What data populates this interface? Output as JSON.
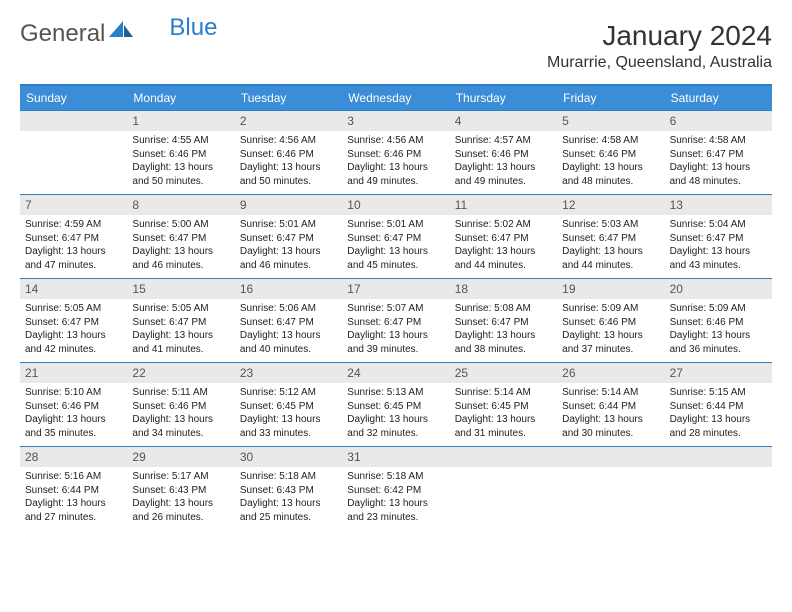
{
  "brand": {
    "part1": "General",
    "part2": "Blue"
  },
  "header": {
    "month_title": "January 2024",
    "location": "Murarrie, Queensland, Australia"
  },
  "colors": {
    "header_bg": "#3a8dd6",
    "border": "#2a7fc9",
    "date_bg": "#e9e9e9",
    "text": "#222222",
    "page_bg": "#ffffff"
  },
  "day_headers": [
    "Sunday",
    "Monday",
    "Tuesday",
    "Wednesday",
    "Thursday",
    "Friday",
    "Saturday"
  ],
  "blank_cells_before": 1,
  "blank_cells_after": 3,
  "days": [
    {
      "n": "1",
      "sunrise": "Sunrise: 4:55 AM",
      "sunset": "Sunset: 6:46 PM",
      "dl1": "Daylight: 13 hours",
      "dl2": "and 50 minutes."
    },
    {
      "n": "2",
      "sunrise": "Sunrise: 4:56 AM",
      "sunset": "Sunset: 6:46 PM",
      "dl1": "Daylight: 13 hours",
      "dl2": "and 50 minutes."
    },
    {
      "n": "3",
      "sunrise": "Sunrise: 4:56 AM",
      "sunset": "Sunset: 6:46 PM",
      "dl1": "Daylight: 13 hours",
      "dl2": "and 49 minutes."
    },
    {
      "n": "4",
      "sunrise": "Sunrise: 4:57 AM",
      "sunset": "Sunset: 6:46 PM",
      "dl1": "Daylight: 13 hours",
      "dl2": "and 49 minutes."
    },
    {
      "n": "5",
      "sunrise": "Sunrise: 4:58 AM",
      "sunset": "Sunset: 6:46 PM",
      "dl1": "Daylight: 13 hours",
      "dl2": "and 48 minutes."
    },
    {
      "n": "6",
      "sunrise": "Sunrise: 4:58 AM",
      "sunset": "Sunset: 6:47 PM",
      "dl1": "Daylight: 13 hours",
      "dl2": "and 48 minutes."
    },
    {
      "n": "7",
      "sunrise": "Sunrise: 4:59 AM",
      "sunset": "Sunset: 6:47 PM",
      "dl1": "Daylight: 13 hours",
      "dl2": "and 47 minutes."
    },
    {
      "n": "8",
      "sunrise": "Sunrise: 5:00 AM",
      "sunset": "Sunset: 6:47 PM",
      "dl1": "Daylight: 13 hours",
      "dl2": "and 46 minutes."
    },
    {
      "n": "9",
      "sunrise": "Sunrise: 5:01 AM",
      "sunset": "Sunset: 6:47 PM",
      "dl1": "Daylight: 13 hours",
      "dl2": "and 46 minutes."
    },
    {
      "n": "10",
      "sunrise": "Sunrise: 5:01 AM",
      "sunset": "Sunset: 6:47 PM",
      "dl1": "Daylight: 13 hours",
      "dl2": "and 45 minutes."
    },
    {
      "n": "11",
      "sunrise": "Sunrise: 5:02 AM",
      "sunset": "Sunset: 6:47 PM",
      "dl1": "Daylight: 13 hours",
      "dl2": "and 44 minutes."
    },
    {
      "n": "12",
      "sunrise": "Sunrise: 5:03 AM",
      "sunset": "Sunset: 6:47 PM",
      "dl1": "Daylight: 13 hours",
      "dl2": "and 44 minutes."
    },
    {
      "n": "13",
      "sunrise": "Sunrise: 5:04 AM",
      "sunset": "Sunset: 6:47 PM",
      "dl1": "Daylight: 13 hours",
      "dl2": "and 43 minutes."
    },
    {
      "n": "14",
      "sunrise": "Sunrise: 5:05 AM",
      "sunset": "Sunset: 6:47 PM",
      "dl1": "Daylight: 13 hours",
      "dl2": "and 42 minutes."
    },
    {
      "n": "15",
      "sunrise": "Sunrise: 5:05 AM",
      "sunset": "Sunset: 6:47 PM",
      "dl1": "Daylight: 13 hours",
      "dl2": "and 41 minutes."
    },
    {
      "n": "16",
      "sunrise": "Sunrise: 5:06 AM",
      "sunset": "Sunset: 6:47 PM",
      "dl1": "Daylight: 13 hours",
      "dl2": "and 40 minutes."
    },
    {
      "n": "17",
      "sunrise": "Sunrise: 5:07 AM",
      "sunset": "Sunset: 6:47 PM",
      "dl1": "Daylight: 13 hours",
      "dl2": "and 39 minutes."
    },
    {
      "n": "18",
      "sunrise": "Sunrise: 5:08 AM",
      "sunset": "Sunset: 6:47 PM",
      "dl1": "Daylight: 13 hours",
      "dl2": "and 38 minutes."
    },
    {
      "n": "19",
      "sunrise": "Sunrise: 5:09 AM",
      "sunset": "Sunset: 6:46 PM",
      "dl1": "Daylight: 13 hours",
      "dl2": "and 37 minutes."
    },
    {
      "n": "20",
      "sunrise": "Sunrise: 5:09 AM",
      "sunset": "Sunset: 6:46 PM",
      "dl1": "Daylight: 13 hours",
      "dl2": "and 36 minutes."
    },
    {
      "n": "21",
      "sunrise": "Sunrise: 5:10 AM",
      "sunset": "Sunset: 6:46 PM",
      "dl1": "Daylight: 13 hours",
      "dl2": "and 35 minutes."
    },
    {
      "n": "22",
      "sunrise": "Sunrise: 5:11 AM",
      "sunset": "Sunset: 6:46 PM",
      "dl1": "Daylight: 13 hours",
      "dl2": "and 34 minutes."
    },
    {
      "n": "23",
      "sunrise": "Sunrise: 5:12 AM",
      "sunset": "Sunset: 6:45 PM",
      "dl1": "Daylight: 13 hours",
      "dl2": "and 33 minutes."
    },
    {
      "n": "24",
      "sunrise": "Sunrise: 5:13 AM",
      "sunset": "Sunset: 6:45 PM",
      "dl1": "Daylight: 13 hours",
      "dl2": "and 32 minutes."
    },
    {
      "n": "25",
      "sunrise": "Sunrise: 5:14 AM",
      "sunset": "Sunset: 6:45 PM",
      "dl1": "Daylight: 13 hours",
      "dl2": "and 31 minutes."
    },
    {
      "n": "26",
      "sunrise": "Sunrise: 5:14 AM",
      "sunset": "Sunset: 6:44 PM",
      "dl1": "Daylight: 13 hours",
      "dl2": "and 30 minutes."
    },
    {
      "n": "27",
      "sunrise": "Sunrise: 5:15 AM",
      "sunset": "Sunset: 6:44 PM",
      "dl1": "Daylight: 13 hours",
      "dl2": "and 28 minutes."
    },
    {
      "n": "28",
      "sunrise": "Sunrise: 5:16 AM",
      "sunset": "Sunset: 6:44 PM",
      "dl1": "Daylight: 13 hours",
      "dl2": "and 27 minutes."
    },
    {
      "n": "29",
      "sunrise": "Sunrise: 5:17 AM",
      "sunset": "Sunset: 6:43 PM",
      "dl1": "Daylight: 13 hours",
      "dl2": "and 26 minutes."
    },
    {
      "n": "30",
      "sunrise": "Sunrise: 5:18 AM",
      "sunset": "Sunset: 6:43 PM",
      "dl1": "Daylight: 13 hours",
      "dl2": "and 25 minutes."
    },
    {
      "n": "31",
      "sunrise": "Sunrise: 5:18 AM",
      "sunset": "Sunset: 6:42 PM",
      "dl1": "Daylight: 13 hours",
      "dl2": "and 23 minutes."
    }
  ]
}
